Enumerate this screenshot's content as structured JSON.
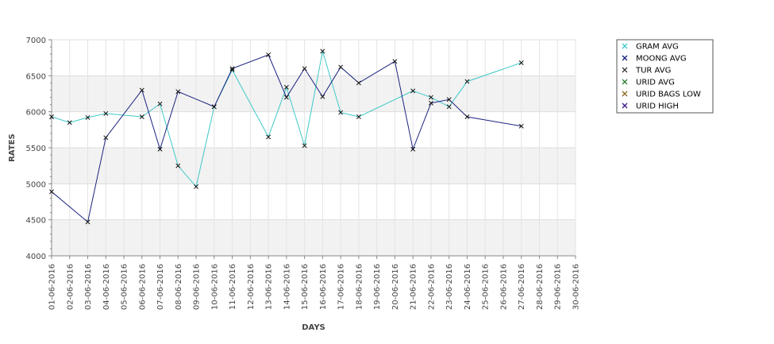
{
  "chart_data": {
    "type": "line",
    "title": "",
    "xlabel": "DAYS",
    "ylabel": "RATES",
    "ylim": [
      4000,
      7000
    ],
    "yticks": [
      4000,
      4500,
      5000,
      5500,
      6000,
      6500,
      7000
    ],
    "grid": "horizontal bands",
    "legend_position": "right",
    "categories": [
      "01-06-2016",
      "02-06-2016",
      "03-06-2016",
      "04-06-2016",
      "05-06-2016",
      "06-06-2016",
      "07-06-2016",
      "08-06-2016",
      "09-06-2016",
      "10-06-2016",
      "11-06-2016",
      "12-06-2016",
      "13-06-2016",
      "14-06-2016",
      "15-06-2016",
      "16-06-2016",
      "17-06-2016",
      "18-06-2016",
      "19-06-2016",
      "20-06-2016",
      "21-06-2016",
      "22-06-2016",
      "23-06-2016",
      "24-06-2016",
      "25-06-2016",
      "26-06-2016",
      "27-06-2016",
      "28-06-2016",
      "29-06-2016",
      "30-06-2016"
    ],
    "series": [
      {
        "name": "GRAM AVG",
        "color": "#40c8c8",
        "points": [
          {
            "x": "01-06-2016",
            "y": 5930
          },
          {
            "x": "02-06-2016",
            "y": 5850
          },
          {
            "x": "03-06-2016",
            "y": 5920
          },
          {
            "x": "04-06-2016",
            "y": 5975
          },
          {
            "x": "06-06-2016",
            "y": 5930
          },
          {
            "x": "07-06-2016",
            "y": 6110
          },
          {
            "x": "08-06-2016",
            "y": 5250
          },
          {
            "x": "09-06-2016",
            "y": 4960
          },
          {
            "x": "10-06-2016",
            "y": 6070
          },
          {
            "x": "11-06-2016",
            "y": 6580
          },
          {
            "x": "13-06-2016",
            "y": 5650
          },
          {
            "x": "14-06-2016",
            "y": 6340
          },
          {
            "x": "15-06-2016",
            "y": 5530
          },
          {
            "x": "16-06-2016",
            "y": 6840
          },
          {
            "x": "17-06-2016",
            "y": 5990
          },
          {
            "x": "18-06-2016",
            "y": 5930
          },
          {
            "x": "21-06-2016",
            "y": 6290
          },
          {
            "x": "22-06-2016",
            "y": 6200
          },
          {
            "x": "23-06-2016",
            "y": 6070
          },
          {
            "x": "24-06-2016",
            "y": 6420
          },
          {
            "x": "27-06-2016",
            "y": 6680
          }
        ]
      },
      {
        "name": "MOONG AVG",
        "color": "#1a237e",
        "points": [
          {
            "x": "01-06-2016",
            "y": 4890
          },
          {
            "x": "03-06-2016",
            "y": 4470
          },
          {
            "x": "04-06-2016",
            "y": 5640
          },
          {
            "x": "06-06-2016",
            "y": 6300
          },
          {
            "x": "07-06-2016",
            "y": 5480
          },
          {
            "x": "08-06-2016",
            "y": 6280
          },
          {
            "x": "10-06-2016",
            "y": 6070
          },
          {
            "x": "11-06-2016",
            "y": 6600
          },
          {
            "x": "13-06-2016",
            "y": 6790
          },
          {
            "x": "14-06-2016",
            "y": 6200
          },
          {
            "x": "15-06-2016",
            "y": 6600
          },
          {
            "x": "16-06-2016",
            "y": 6210
          },
          {
            "x": "17-06-2016",
            "y": 6620
          },
          {
            "x": "18-06-2016",
            "y": 6400
          },
          {
            "x": "20-06-2016",
            "y": 6700
          },
          {
            "x": "21-06-2016",
            "y": 5480
          },
          {
            "x": "22-06-2016",
            "y": 6120
          },
          {
            "x": "23-06-2016",
            "y": 6170
          },
          {
            "x": "24-06-2016",
            "y": 5930
          },
          {
            "x": "27-06-2016",
            "y": 5800
          }
        ]
      },
      {
        "name": "TUR AVG",
        "color": "#3b3b3b",
        "points": []
      },
      {
        "name": "URID AVG",
        "color": "#2e7d32",
        "points": []
      },
      {
        "name": "URID BAGS LOW",
        "color": "#8d6e1f",
        "points": []
      },
      {
        "name": "URID HIGH",
        "color": "#3d1a8c",
        "points": []
      }
    ]
  }
}
